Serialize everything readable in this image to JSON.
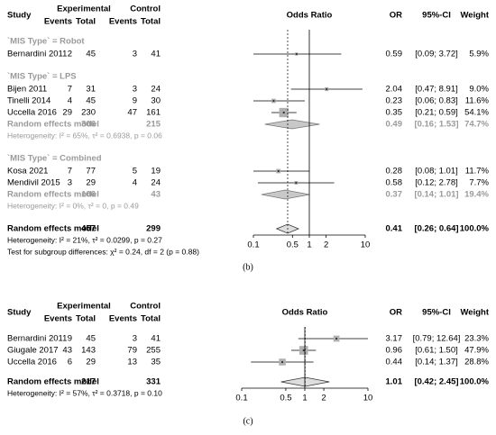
{
  "chart_data": [
    {
      "type": "forest",
      "caption": "(b)",
      "columns": {
        "study": "Study",
        "experimental": "Experimental",
        "events_e": "Events",
        "total_e": "Total",
        "control": "Control",
        "events_c": "Events",
        "total_c": "Total",
        "plot": "Odds Ratio",
        "or": "OR",
        "ci": "95%-CI",
        "weight": "Weight"
      },
      "groups": [
        {
          "label": "`MIS Type` = Robot",
          "studies": [
            {
              "study": "Bernardini 2011",
              "events_e": 2,
              "total_e": 45,
              "events_c": 3,
              "total_c": 41,
              "or": 0.59,
              "ci_low": 0.09,
              "ci_high": 3.72,
              "ci": "[0.09; 3.72]",
              "weight": 5.9,
              "weight_label": "5.9%"
            }
          ]
        },
        {
          "label": "`MIS Type` = LPS",
          "studies": [
            {
              "study": "Bijen 2011",
              "events_e": 7,
              "total_e": 31,
              "events_c": 3,
              "total_c": 24,
              "or": 2.04,
              "ci_low": 0.47,
              "ci_high": 8.91,
              "ci": "[0.47; 8.91]",
              "weight": 9.0,
              "weight_label": "9.0%"
            },
            {
              "study": "Tinelli 2014",
              "events_e": 4,
              "total_e": 45,
              "events_c": 9,
              "total_c": 30,
              "or": 0.23,
              "ci_low": 0.06,
              "ci_high": 0.83,
              "ci": "[0.06; 0.83]",
              "weight": 11.6,
              "weight_label": "11.6%"
            },
            {
              "study": "Uccella 2016",
              "events_e": 29,
              "total_e": 230,
              "events_c": 47,
              "total_c": 161,
              "or": 0.35,
              "ci_low": 0.21,
              "ci_high": 0.59,
              "ci": "[0.21; 0.59]",
              "weight": 54.1,
              "weight_label": "54.1%"
            }
          ],
          "pooled": {
            "label": "Random effects model",
            "total_e": 306,
            "total_c": 215,
            "or": 0.49,
            "ci_low": 0.16,
            "ci_high": 1.53,
            "ci": "[0.16; 1.53]",
            "weight": 74.7,
            "weight_label": "74.7%"
          },
          "heterogeneity": "Heterogeneity: I² = 65%, τ² = 0.6938, p = 0.06"
        },
        {
          "label": "`MIS Type` = Combined",
          "studies": [
            {
              "study": "Kosa 2021",
              "events_e": 7,
              "total_e": 77,
              "events_c": 5,
              "total_c": 19,
              "or": 0.28,
              "ci_low": 0.08,
              "ci_high": 1.01,
              "ci": "[0.08; 1.01]",
              "weight": 11.7,
              "weight_label": "11.7%"
            },
            {
              "study": "Mendivil 2015",
              "events_e": 3,
              "total_e": 29,
              "events_c": 4,
              "total_c": 24,
              "or": 0.58,
              "ci_low": 0.12,
              "ci_high": 2.78,
              "ci": "[0.12; 2.78]",
              "weight": 7.7,
              "weight_label": "7.7%"
            }
          ],
          "pooled": {
            "label": "Random effects model",
            "total_e": 106,
            "total_c": 43,
            "or": 0.37,
            "ci_low": 0.14,
            "ci_high": 1.01,
            "ci": "[0.14; 1.01]",
            "weight": 19.4,
            "weight_label": "19.4%"
          },
          "heterogeneity": "Heterogeneity: I² = 0%, τ² = 0, p = 0.49"
        }
      ],
      "overall": {
        "label": "Random effects model",
        "total_e": 457,
        "total_c": 299,
        "or": 0.41,
        "ci_low": 0.26,
        "ci_high": 0.64,
        "ci": "[0.26; 0.64]",
        "weight": 100.0,
        "weight_label": "100.0%"
      },
      "heterogeneity": "Heterogeneity: I² = 21%, τ² = 0.0299, p = 0.27",
      "subgroup_test": "Test for subgroup differences: χ² = 0.24, df = 2 (p = 0.88)",
      "xlim": [
        0.1,
        10
      ],
      "xticks": [
        0.1,
        0.5,
        1,
        2,
        10
      ],
      "log_x": true,
      "null_line": 1,
      "square_color": "#b0b0b0",
      "subgroup_color": "#9a9a9a",
      "diamond_color": "#c8c8c8",
      "overall_diamond_color": "#dedede"
    },
    {
      "type": "forest",
      "caption": "(c)",
      "columns": {
        "study": "Study",
        "experimental": "Experimental",
        "events_e": "Events",
        "total_e": "Total",
        "control": "Control",
        "events_c": "Events",
        "total_c": "Total",
        "plot": "Odds Ratio",
        "or": "OR",
        "ci": "95%-CI",
        "weight": "Weight"
      },
      "studies": [
        {
          "study": "Bernardini 2011",
          "events_e": 9,
          "total_e": 45,
          "events_c": 3,
          "total_c": 41,
          "or": 3.17,
          "ci_low": 0.79,
          "ci_high": 12.64,
          "ci": "[0.79; 12.64]",
          "weight": 23.3,
          "weight_label": "23.3%"
        },
        {
          "study": "Giugale 2017",
          "events_e": 43,
          "total_e": 143,
          "events_c": 79,
          "total_c": 255,
          "or": 0.96,
          "ci_low": 0.61,
          "ci_high": 1.5,
          "ci": "[0.61; 1.50]",
          "weight": 47.9,
          "weight_label": "47.9%"
        },
        {
          "study": "Uccella 2016",
          "events_e": 6,
          "total_e": 29,
          "events_c": 13,
          "total_c": 35,
          "or": 0.44,
          "ci_low": 0.14,
          "ci_high": 1.37,
          "ci": "[0.14; 1.37]",
          "weight": 28.8,
          "weight_label": "28.8%"
        }
      ],
      "overall": {
        "label": "Random effects model",
        "total_e": 217,
        "total_c": 331,
        "or": 1.01,
        "ci_low": 0.42,
        "ci_high": 2.45,
        "ci": "[0.42; 2.45]",
        "weight": 100.0,
        "weight_label": "100.0%"
      },
      "heterogeneity": "Heterogeneity: I² = 57%, τ² = 0.3718, p = 0.10",
      "xlim": [
        0.1,
        10
      ],
      "xticks": [
        0.1,
        0.5,
        1,
        2,
        10
      ],
      "log_x": true,
      "null_line": 1,
      "square_color": "#b0b0b0",
      "subgroup_color": "#9a9a9a",
      "diamond_color": "#c8c8c8",
      "overall_diamond_color": "#dedede"
    }
  ]
}
